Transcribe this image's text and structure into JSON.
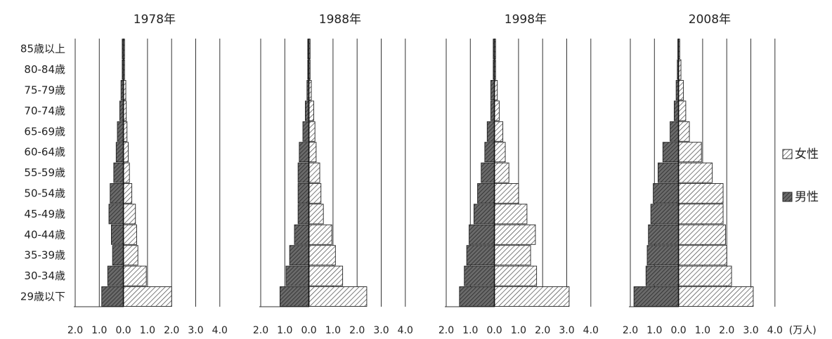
{
  "chart_data": {
    "type": "bar",
    "orientation": "horizontal-butterfly",
    "unit": "(万人)",
    "categories": [
      "85歳以上",
      "80-84歳",
      "75-79歳",
      "70-74歳",
      "65-69歳",
      "60-64歳",
      "55-59歳",
      "50-54歳",
      "45-49歳",
      "40-44歳",
      "35-39歳",
      "30-34歳",
      "29歳以下"
    ],
    "xlim": [
      -2.0,
      4.0
    ],
    "x_tick_labels": [
      "2.0",
      "1.0",
      "0.0",
      "1.0",
      "2.0",
      "3.0",
      "4.0"
    ],
    "legend": {
      "placement": "right",
      "items": [
        {
          "label": "女性",
          "pattern": "hatched"
        },
        {
          "label": "男性",
          "pattern": "dark-hatched"
        }
      ]
    },
    "panels": [
      {
        "title": "1978年",
        "male": [
          0.05,
          0.05,
          0.1,
          0.15,
          0.25,
          0.3,
          0.4,
          0.55,
          0.6,
          0.5,
          0.45,
          0.65,
          0.9
        ],
        "female": [
          0.05,
          0.05,
          0.1,
          0.12,
          0.15,
          0.2,
          0.25,
          0.35,
          0.5,
          0.55,
          0.6,
          0.95,
          2.0
        ]
      },
      {
        "title": "1988年",
        "male": [
          0.05,
          0.05,
          0.08,
          0.15,
          0.25,
          0.4,
          0.45,
          0.45,
          0.45,
          0.6,
          0.8,
          0.95,
          1.2
        ],
        "female": [
          0.05,
          0.05,
          0.1,
          0.2,
          0.25,
          0.3,
          0.45,
          0.5,
          0.6,
          0.95,
          1.1,
          1.4,
          2.4
        ]
      },
      {
        "title": "1998年",
        "male": [
          0.05,
          0.05,
          0.15,
          0.15,
          0.3,
          0.4,
          0.55,
          0.7,
          0.85,
          1.05,
          1.15,
          1.25,
          1.45
        ],
        "female": [
          0.05,
          0.05,
          0.12,
          0.2,
          0.35,
          0.45,
          0.6,
          1.0,
          1.35,
          1.7,
          1.5,
          1.75,
          3.1
        ]
      },
      {
        "title": "2008年",
        "male": [
          0.03,
          0.05,
          0.1,
          0.18,
          0.35,
          0.65,
          0.85,
          1.05,
          1.15,
          1.25,
          1.3,
          1.35,
          1.85
        ],
        "female": [
          0.05,
          0.1,
          0.2,
          0.3,
          0.45,
          0.95,
          1.4,
          1.85,
          1.85,
          1.95,
          2.0,
          2.2,
          3.1
        ]
      }
    ]
  }
}
